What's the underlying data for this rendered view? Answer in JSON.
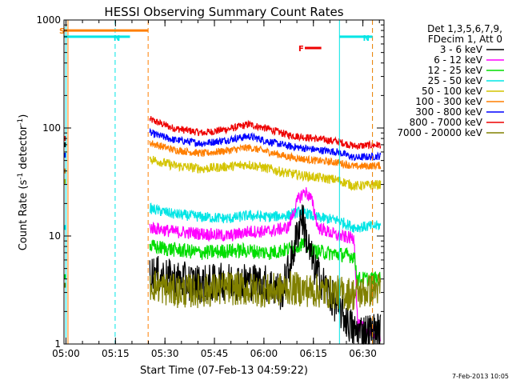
{
  "chart_data": {
    "type": "line",
    "title": "HESSI Observing Summary Count Rates",
    "ylabel_main": "Count Rate (s",
    "ylabel_sup1": "-1",
    "ylabel_mid": " detector",
    "ylabel_sup2": "-1",
    "ylabel_end": ")",
    "xlabel": "Start Time (07-Feb-13 04:59:22)",
    "x_ticks": [
      "05:00",
      "05:15",
      "05:30",
      "05:45",
      "06:00",
      "06:15",
      "06:30"
    ],
    "y_ticks": [
      "1",
      "10",
      "100",
      "1000"
    ],
    "y_scale": "log",
    "ylim": [
      1,
      1000
    ],
    "xlim_minutes": [
      0,
      97
    ],
    "footer_date": "7-Feb-2013 10:05",
    "legend_header": [
      "Det 1,3,5,6,7,9,",
      "FDecim 1, Att 0"
    ],
    "legend_position": "top-right",
    "series": [
      {
        "name": "3 - 6 keV",
        "color": "#000000"
      },
      {
        "name": "6 - 12 keV",
        "color": "#ff00ff"
      },
      {
        "name": "12 - 25 keV",
        "color": "#00dd00"
      },
      {
        "name": "25 - 50 keV",
        "color": "#00e5e5"
      },
      {
        "name": "50 - 100 keV",
        "color": "#d4c400"
      },
      {
        "name": "100 - 300 keV",
        "color": "#ff7f00"
      },
      {
        "name": "300 - 800 keV",
        "color": "#0000ff"
      },
      {
        "name": "800 - 7000 keV",
        "color": "#ee0000"
      },
      {
        "name": "7000 - 20000 keV",
        "color": "#808000"
      }
    ],
    "annotations": [
      {
        "label": "S",
        "color": "#ff7f00",
        "start_min": 0,
        "end_min": 25.5,
        "y": 800
      },
      {
        "label": "N",
        "color": "#00e5e5",
        "start_min": 0,
        "end_min": 20,
        "y": 700
      },
      {
        "label": "N",
        "color": "#00e5e5",
        "start_min": 83.5,
        "end_min": 93.5,
        "y": 700
      },
      {
        "label": "F",
        "color": "#ee0000",
        "start_min": 73,
        "end_min": 78,
        "y": 550
      }
    ],
    "vertical_lines": [
      {
        "minute": 1.2,
        "color": "#ff7f00",
        "style": "solid"
      },
      {
        "minute": 0.6,
        "color": "#00e5e5",
        "style": "solid"
      },
      {
        "minute": 15.5,
        "color": "#00e5e5",
        "style": "dashed"
      },
      {
        "minute": 25.5,
        "color": "#ff7f00",
        "style": "dashed"
      },
      {
        "minute": 83.5,
        "color": "#00e5e5",
        "style": "solid"
      },
      {
        "minute": 93.5,
        "color": "#00e5e5",
        "style": "dashed"
      },
      {
        "minute": 93.5,
        "color": "#ff7f00",
        "style": "dashed"
      }
    ],
    "curves": [
      {
        "key": "red",
        "color": "#ee0000",
        "noise": 0.035,
        "knots": [
          [
            26,
            120
          ],
          [
            33,
            100
          ],
          [
            42,
            90
          ],
          [
            50,
            98
          ],
          [
            56,
            108
          ],
          [
            62,
            98
          ],
          [
            68,
            86
          ],
          [
            76,
            80
          ],
          [
            83,
            75
          ],
          [
            88,
            68
          ],
          [
            96,
            70
          ]
        ]
      },
      {
        "key": "blue",
        "color": "#0000ff",
        "noise": 0.035,
        "knots": [
          [
            26,
            90
          ],
          [
            33,
            78
          ],
          [
            42,
            72
          ],
          [
            50,
            78
          ],
          [
            56,
            84
          ],
          [
            62,
            75
          ],
          [
            68,
            68
          ],
          [
            76,
            63
          ],
          [
            83,
            60
          ],
          [
            88,
            53
          ],
          [
            96,
            55
          ]
        ]
      },
      {
        "key": "orange",
        "color": "#ff7f00",
        "noise": 0.035,
        "knots": [
          [
            26,
            73
          ],
          [
            33,
            63
          ],
          [
            42,
            58
          ],
          [
            50,
            62
          ],
          [
            56,
            66
          ],
          [
            62,
            60
          ],
          [
            68,
            54
          ],
          [
            76,
            50
          ],
          [
            83,
            48
          ],
          [
            88,
            44
          ],
          [
            96,
            45
          ]
        ]
      },
      {
        "key": "yellow",
        "color": "#d4c400",
        "noise": 0.045,
        "knots": [
          [
            26,
            52
          ],
          [
            33,
            45
          ],
          [
            42,
            42
          ],
          [
            50,
            44
          ],
          [
            56,
            46
          ],
          [
            62,
            42
          ],
          [
            68,
            38
          ],
          [
            76,
            35
          ],
          [
            83,
            33
          ],
          [
            88,
            29
          ],
          [
            96,
            30
          ]
        ]
      },
      {
        "key": "cyan",
        "color": "#00e5e5",
        "noise": 0.05,
        "knots": [
          [
            26,
            18
          ],
          [
            33,
            16
          ],
          [
            42,
            15
          ],
          [
            50,
            14.5
          ],
          [
            56,
            15.5
          ],
          [
            62,
            15
          ],
          [
            68,
            15.5
          ],
          [
            72,
            17
          ],
          [
            76,
            15
          ],
          [
            83,
            14
          ],
          [
            88,
            12
          ],
          [
            96,
            12.5
          ]
        ]
      },
      {
        "key": "magenta",
        "color": "#ff00ff",
        "noise": 0.06,
        "knots": [
          [
            26,
            12
          ],
          [
            33,
            11
          ],
          [
            42,
            10.5
          ],
          [
            50,
            10
          ],
          [
            56,
            11
          ],
          [
            62,
            11
          ],
          [
            68,
            12
          ],
          [
            71,
            22
          ],
          [
            73,
            26
          ],
          [
            75,
            22
          ],
          [
            77,
            12
          ],
          [
            83,
            10
          ],
          [
            88,
            9.5
          ],
          [
            89,
            1.5
          ],
          [
            96,
            1.2
          ]
        ]
      },
      {
        "key": "green",
        "color": "#00dd00",
        "noise": 0.07,
        "knots": [
          [
            26,
            8
          ],
          [
            33,
            7.5
          ],
          [
            42,
            7
          ],
          [
            50,
            7.3
          ],
          [
            56,
            7.3
          ],
          [
            62,
            7
          ],
          [
            68,
            7.5
          ],
          [
            72,
            8.5
          ],
          [
            76,
            7.2
          ],
          [
            83,
            6.8
          ],
          [
            88,
            6.5
          ],
          [
            89,
            4
          ],
          [
            96,
            4
          ]
        ]
      },
      {
        "key": "black",
        "color": "#000000",
        "noise": 0.18,
        "knots": [
          [
            26,
            4.5
          ],
          [
            33,
            4
          ],
          [
            42,
            3.6
          ],
          [
            50,
            3.8
          ],
          [
            56,
            3.8
          ],
          [
            62,
            3.6
          ],
          [
            66,
            3
          ],
          [
            69,
            6
          ],
          [
            72,
            16
          ],
          [
            74,
            8
          ],
          [
            76,
            5
          ],
          [
            80,
            3
          ],
          [
            84,
            2
          ],
          [
            88,
            1.3
          ],
          [
            96,
            1.3
          ]
        ]
      },
      {
        "key": "olive",
        "color": "#808000",
        "noise": 0.16,
        "knots": [
          [
            26,
            3.6
          ],
          [
            33,
            3.1
          ],
          [
            42,
            3.1
          ],
          [
            50,
            3.3
          ],
          [
            56,
            3.2
          ],
          [
            62,
            3.1
          ],
          [
            68,
            3.3
          ],
          [
            76,
            3.1
          ],
          [
            83,
            3
          ],
          [
            88,
            2.9
          ],
          [
            96,
            3.3
          ]
        ]
      }
    ],
    "left_markers": [
      {
        "minute": 0.4,
        "y": 80,
        "color": "#ee0000"
      },
      {
        "minute": 0.4,
        "y": 70,
        "color": "#000000"
      },
      {
        "minute": 0.4,
        "y": 56,
        "color": "#0000ff"
      },
      {
        "minute": 0.4,
        "y": 40,
        "color": "#ff7f00"
      },
      {
        "minute": 0.4,
        "y": 32,
        "color": "#d4c400"
      },
      {
        "minute": 0.4,
        "y": 12,
        "color": "#00e5e5"
      },
      {
        "minute": 0.4,
        "y": 4.2,
        "color": "#00dd00"
      },
      {
        "minute": 0.4,
        "y": 3.5,
        "color": "#808000"
      }
    ]
  }
}
